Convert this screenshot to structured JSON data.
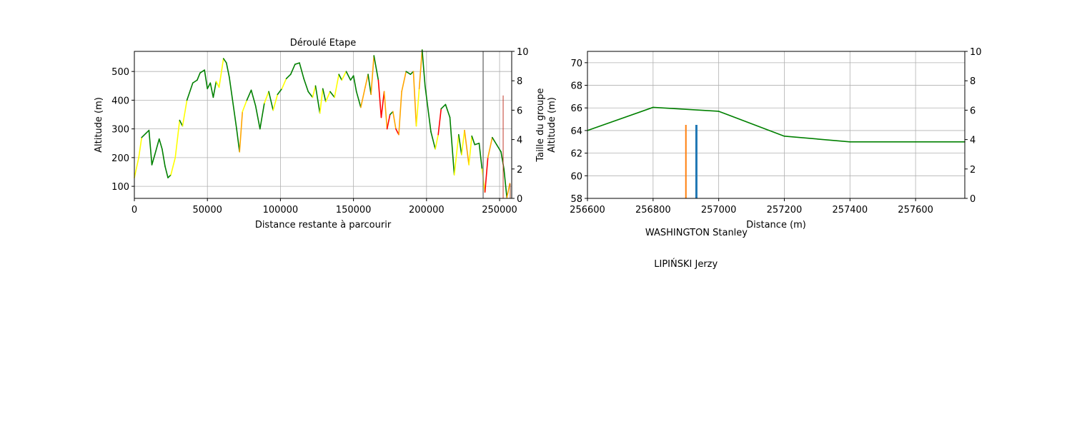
{
  "chart_data": [
    {
      "type": "line",
      "title": "Déroulé Etape",
      "xlabel": "Distance restante à parcourir",
      "ylabel": "Altitude (m)",
      "y2label": "Taille du groupe",
      "xlim": [
        0,
        258300
      ],
      "ylim": [
        58,
        570
      ],
      "y2lim": [
        0,
        10
      ],
      "xticks": [
        0,
        50000,
        100000,
        150000,
        200000,
        250000
      ],
      "yticks": [
        100,
        200,
        300,
        400,
        500
      ],
      "y2ticks": [
        0,
        2,
        4,
        6,
        8,
        10
      ],
      "grid": true,
      "series": [
        {
          "type": "line",
          "color": "green",
          "x": [
            0,
            3000,
            5000,
            8000,
            10000,
            12000,
            14000,
            17000,
            19000,
            21000,
            23000,
            25000,
            28000,
            31000,
            33000,
            36000,
            40000,
            43000,
            45000,
            48000,
            50000,
            52000,
            54000,
            56000,
            58000,
            61000,
            63000,
            65000,
            70000,
            72000,
            74000,
            77000,
            80000,
            83000,
            86000,
            89000,
            92000,
            95000,
            98000,
            101000,
            104000,
            107000,
            110000,
            113000,
            116000,
            119000,
            122000,
            124000,
            127000,
            129000,
            131000,
            134000,
            137000,
            140000,
            142000,
            145000,
            148000,
            150000,
            152000,
            155000,
            158000,
            160000,
            162000,
            164000,
            167000,
            169000,
            171000,
            173000,
            175000,
            177000,
            179000,
            181000,
            183000,
            186000,
            189000,
            191000,
            193000,
            195000,
            197000,
            199000,
            203000,
            206000,
            208000,
            210000,
            213000,
            216000,
            219000,
            222000,
            224000,
            226000,
            229000,
            231000,
            233000,
            236000,
            238000,
            240000,
            242000,
            245000,
            248000,
            251000,
            253000,
            255000,
            257000
          ],
          "values": [
            130,
            200,
            270,
            285,
            295,
            175,
            210,
            265,
            230,
            170,
            130,
            140,
            200,
            330,
            310,
            400,
            460,
            470,
            495,
            505,
            440,
            460,
            410,
            465,
            445,
            545,
            530,
            480,
            300,
            220,
            360,
            400,
            435,
            380,
            300,
            390,
            430,
            365,
            420,
            440,
            475,
            490,
            525,
            530,
            475,
            430,
            410,
            450,
            355,
            440,
            395,
            430,
            410,
            490,
            470,
            500,
            470,
            485,
            430,
            375,
            445,
            490,
            420,
            555,
            470,
            340,
            430,
            300,
            350,
            360,
            300,
            280,
            430,
            500,
            490,
            500,
            310,
            440,
            575,
            450,
            290,
            230,
            280,
            370,
            385,
            340,
            140,
            280,
            210,
            295,
            175,
            275,
            245,
            250,
            160,
            80,
            200,
            270,
            245,
            220,
            160,
            60,
            110
          ],
          "colors": [
            "yellow",
            "yellow",
            "green",
            "green",
            "green",
            "green",
            "green",
            "green",
            "green",
            "green",
            "green",
            "yellow",
            "yellow",
            "green",
            "yellow",
            "green",
            "green",
            "green",
            "green",
            "green",
            "green",
            "green",
            "green",
            "yellow",
            "yellow",
            "green",
            "green",
            "green",
            "green",
            "orange",
            "yellow",
            "green",
            "green",
            "green",
            "green",
            "yellow",
            "green",
            "yellow",
            "green",
            "yellow",
            "green",
            "green",
            "green",
            "green",
            "green",
            "green",
            "yellow",
            "green",
            "yellow",
            "green",
            "yellow",
            "green",
            "yellow",
            "green",
            "yellow",
            "green",
            "green",
            "green",
            "green",
            "orange",
            "orange",
            "green",
            "orange",
            "green",
            "red",
            "red",
            "orange",
            "red",
            "green",
            "orange",
            "red",
            "orange",
            "orange",
            "green",
            "green",
            "orange",
            "yellow",
            "orange",
            "green",
            "green",
            "green",
            "yellow",
            "red",
            "green",
            "green",
            "green",
            "yellow",
            "green",
            "yellow",
            "orange",
            "yellow",
            "green",
            "green",
            "green",
            "yellow",
            "red",
            "orange",
            "green",
            "green",
            "green",
            "green",
            "orange",
            "orange"
          ]
        },
        {
          "type": "bar",
          "axis": "y2",
          "x": [
            238750,
            252450,
            257300
          ],
          "values": [
            10,
            7,
            1
          ],
          "colors": [
            "#808080",
            "#c0392b",
            "#a0522d"
          ]
        }
      ]
    },
    {
      "type": "line",
      "xlabel": "Distance (m)",
      "ylabel": "Altitude (m)",
      "xlim": [
        256600,
        257750
      ],
      "ylim": [
        58,
        71
      ],
      "y2lim": [
        0,
        10
      ],
      "xticks": [
        256600,
        256800,
        257000,
        257200,
        257400,
        257600
      ],
      "yticks": [
        58,
        60,
        62,
        64,
        66,
        68,
        70
      ],
      "y2ticks": [
        0,
        2,
        4,
        6,
        8,
        10
      ],
      "grid": true,
      "series": [
        {
          "type": "line",
          "color": "green",
          "x": [
            256600,
            256800,
            257000,
            257200,
            257400,
            257750
          ],
          "values": [
            64,
            66.05,
            65.7,
            63.5,
            63,
            63
          ]
        },
        {
          "type": "bar",
          "axis": "y2",
          "x": [
            256900,
            256932
          ],
          "values": [
            5,
            5
          ],
          "colors": [
            "#ff7f0e",
            "#1f77b4"
          ],
          "labels": [
            "LIPIŃSKI Jerzy",
            "WASHINGTON Stanley"
          ]
        }
      ]
    }
  ]
}
